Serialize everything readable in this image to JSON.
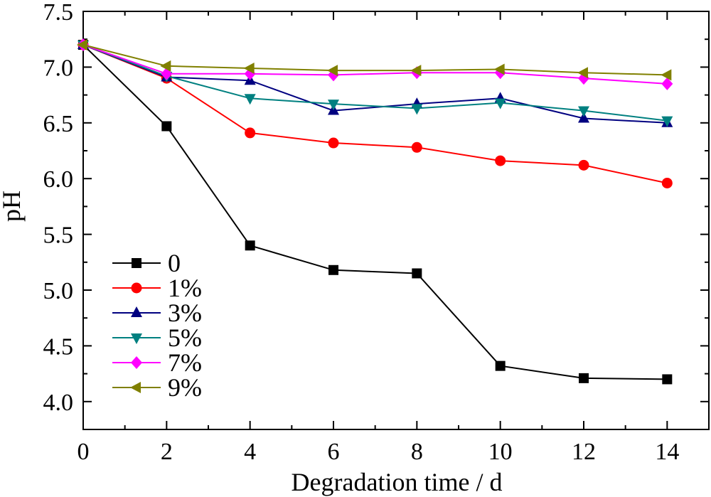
{
  "chart_data": {
    "type": "line",
    "xlabel": "Degradation time / d",
    "ylabel": "pH",
    "xlim": [
      0,
      15
    ],
    "ylim": [
      3.75,
      7.5
    ],
    "x_ticks": [
      0,
      2,
      4,
      6,
      8,
      10,
      12,
      14
    ],
    "x_tick_labels": [
      "0",
      "2",
      "4",
      "6",
      "8",
      "10",
      "12",
      "14"
    ],
    "y_ticks": [
      4.0,
      4.5,
      5.0,
      5.5,
      6.0,
      6.5,
      7.0,
      7.5
    ],
    "y_tick_labels": [
      "4.0",
      "4.5",
      "5.0",
      "5.5",
      "6.0",
      "6.5",
      "7.0",
      "7.5"
    ],
    "grid": false,
    "legend_position": "lower-left",
    "x": [
      0,
      2,
      4,
      6,
      8,
      10,
      12,
      14
    ],
    "series": [
      {
        "name": "0",
        "marker": "square",
        "color": "#000000",
        "values": [
          7.2,
          6.47,
          5.4,
          5.18,
          5.15,
          4.32,
          4.21,
          4.2
        ]
      },
      {
        "name": "1%",
        "marker": "circle",
        "color": "#ff0000",
        "values": [
          7.2,
          6.9,
          6.41,
          6.32,
          6.28,
          6.16,
          6.12,
          5.96
        ]
      },
      {
        "name": "3%",
        "marker": "triangle-up",
        "color": "#000080",
        "values": [
          7.2,
          6.91,
          6.88,
          6.61,
          6.67,
          6.72,
          6.54,
          6.5
        ]
      },
      {
        "name": "5%",
        "marker": "triangle-down",
        "color": "#008080",
        "values": [
          7.2,
          6.92,
          6.72,
          6.67,
          6.63,
          6.68,
          6.61,
          6.52
        ]
      },
      {
        "name": "7%",
        "marker": "diamond",
        "color": "#ff00ff",
        "values": [
          7.2,
          6.94,
          6.94,
          6.93,
          6.95,
          6.95,
          6.9,
          6.85
        ]
      },
      {
        "name": "9%",
        "marker": "triangle-left",
        "color": "#808000",
        "values": [
          7.2,
          7.01,
          6.99,
          6.97,
          6.97,
          6.98,
          6.95,
          6.93
        ]
      }
    ]
  }
}
